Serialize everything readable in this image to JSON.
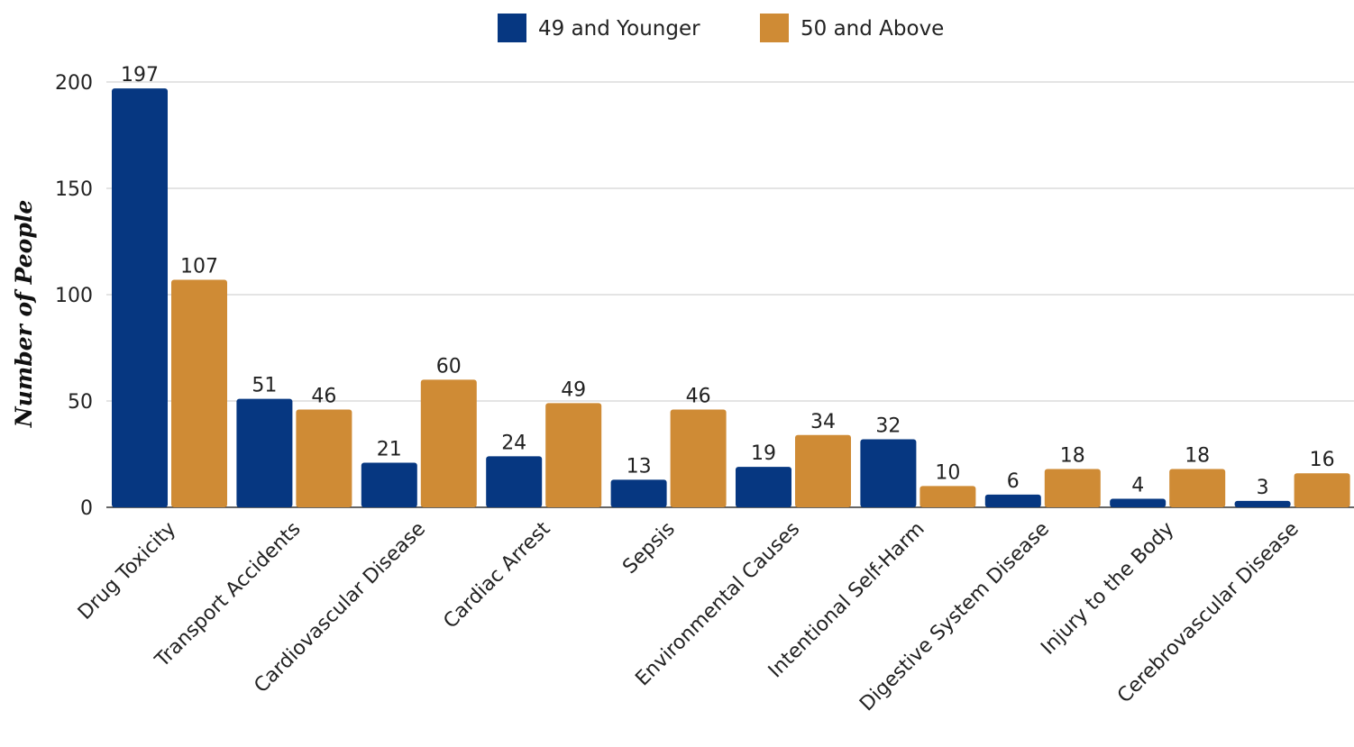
{
  "chart_data": {
    "type": "bar",
    "categories": [
      "Drug Toxicity",
      "Transport Accidents",
      "Cardiovascular Disease",
      "Cardiac Arrest",
      "Sepsis",
      "Environmental Causes",
      "Intentional Self-Harm",
      "Digestive System Disease",
      "Injury to the Body",
      "Cerebrovascular Disease"
    ],
    "series": [
      {
        "name": "49 and Younger",
        "color": "#063781",
        "values": [
          197,
          51,
          21,
          24,
          13,
          19,
          32,
          6,
          4,
          3
        ]
      },
      {
        "name": "50 and Above",
        "color": "#cf8b35",
        "values": [
          107,
          46,
          60,
          49,
          46,
          34,
          10,
          18,
          18,
          16
        ]
      }
    ],
    "ylabel": "Number of People",
    "ylim": [
      0,
      200
    ],
    "yticks": [
      0,
      50,
      100,
      150,
      200
    ],
    "grid": true,
    "legend_position": "top-center",
    "data_labels": true
  }
}
